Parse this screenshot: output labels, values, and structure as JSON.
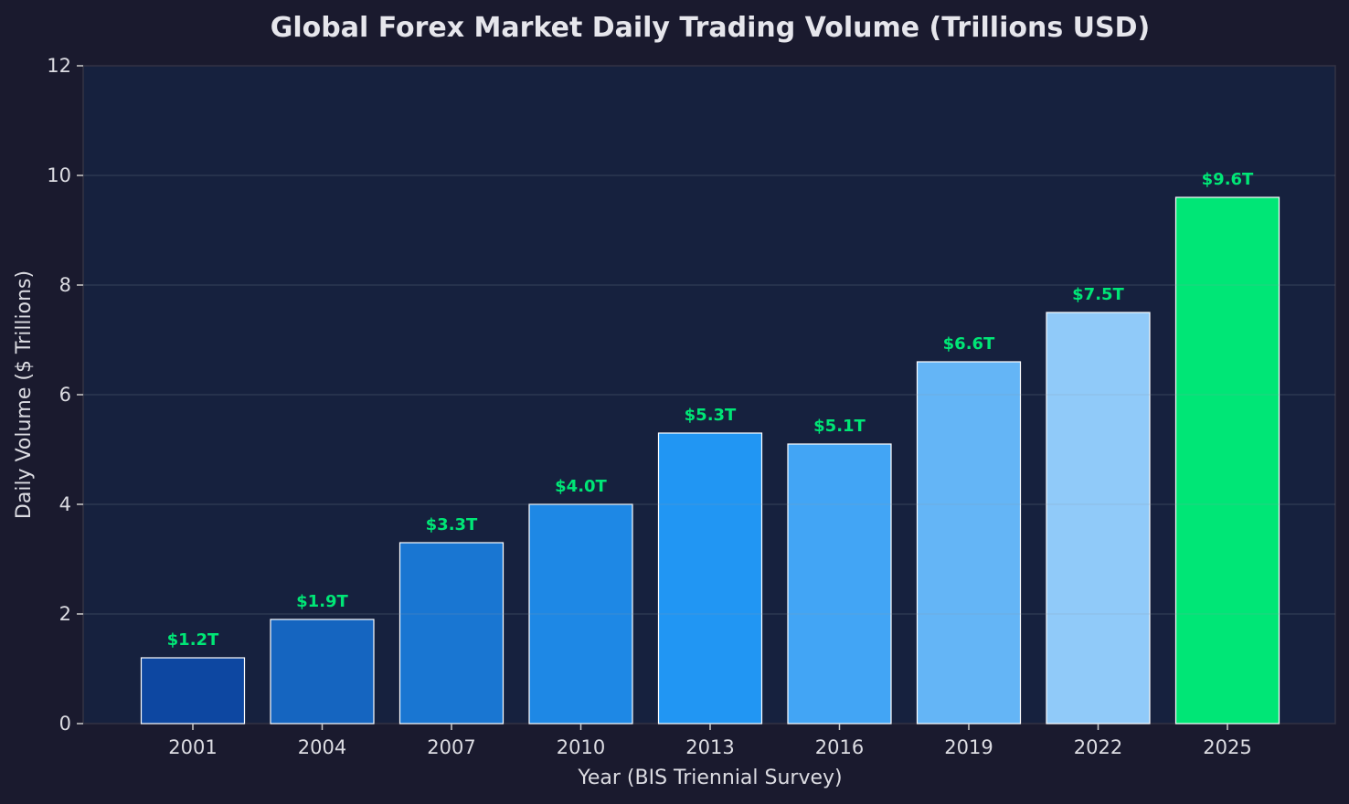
{
  "chart_data": {
    "type": "bar",
    "title": "Global Forex Market Daily Trading Volume (Trillions USD)",
    "xlabel": "Year (BIS Triennial Survey)",
    "ylabel": "Daily Volume ($ Trillions)",
    "categories": [
      "2001",
      "2004",
      "2007",
      "2010",
      "2013",
      "2016",
      "2019",
      "2022",
      "2025"
    ],
    "values": [
      1.2,
      1.9,
      3.3,
      4.0,
      5.3,
      5.1,
      6.6,
      7.5,
      9.6
    ],
    "data_labels": [
      "$1.2T",
      "$1.9T",
      "$3.3T",
      "$4.0T",
      "$5.3T",
      "$5.1T",
      "$6.6T",
      "$7.5T",
      "$9.6T"
    ],
    "bar_colors": [
      "#0d47a1",
      "#1565c0",
      "#1976d2",
      "#1e88e5",
      "#2196f3",
      "#42a5f5",
      "#64b5f6",
      "#90caf9",
      "#00e676"
    ],
    "data_label_color": "#00e676",
    "ylim": [
      0,
      12
    ],
    "yticks": [
      0,
      2,
      4,
      6,
      8,
      10,
      12
    ],
    "grid": true,
    "background": "#1a1a2e",
    "plot_background": "#16213e"
  }
}
